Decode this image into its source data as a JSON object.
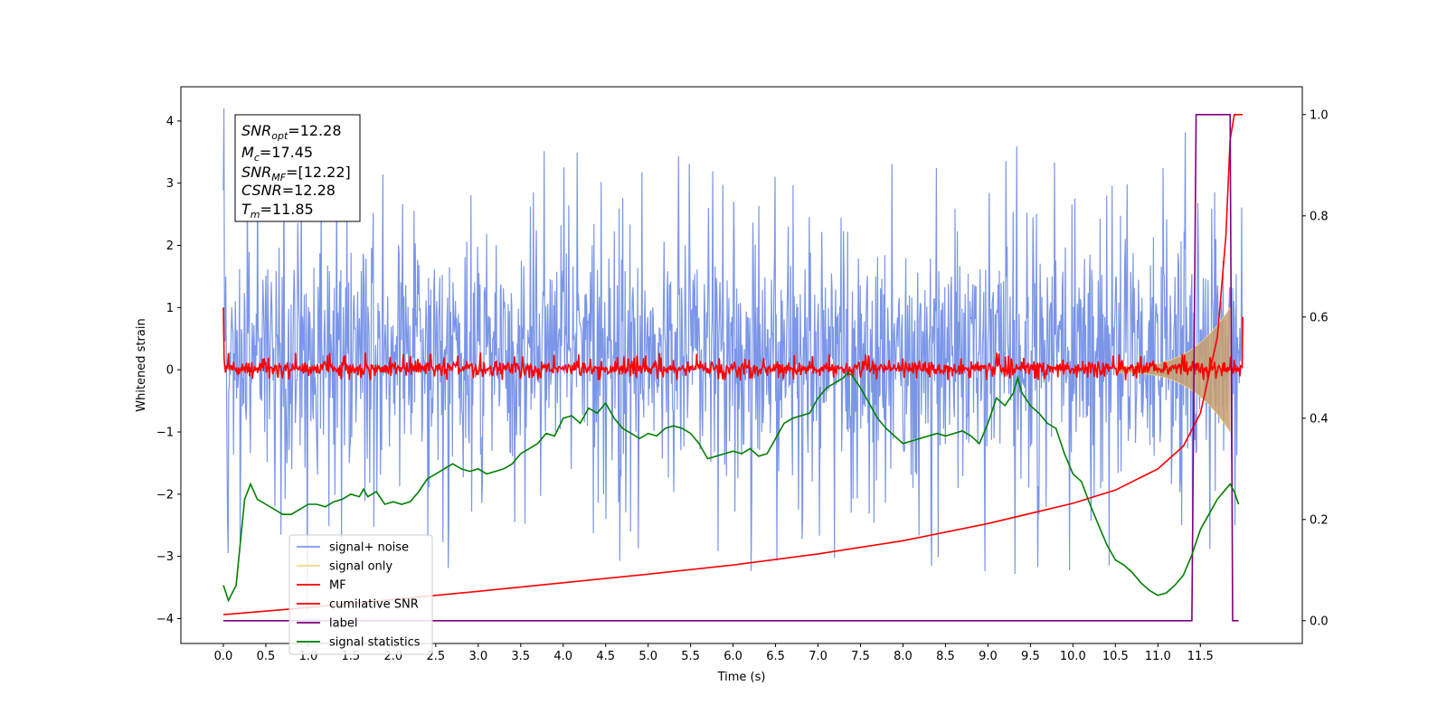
{
  "chart_data": {
    "type": "line",
    "xlabel": "Time (s)",
    "ylabel": "Whitened strain",
    "xlim": [
      -0.5,
      12.7
    ],
    "ylim": [
      -4.4,
      4.55
    ],
    "y2lim": [
      -0.045,
      1.055
    ],
    "x_ticks": [
      "0.0",
      "0.5",
      "1.0",
      "1.5",
      "2.0",
      "2.5",
      "3.0",
      "3.5",
      "4.0",
      "4.5",
      "5.0",
      "5.5",
      "6.0",
      "6.5",
      "7.0",
      "7.5",
      "8.0",
      "8.5",
      "9.0",
      "9.5",
      "10.0",
      "10.5",
      "11.0",
      "11.5"
    ],
    "y_ticks": [
      "4",
      "3",
      "2",
      "1",
      "0",
      "−1",
      "−2",
      "−3",
      "−4"
    ],
    "y2_ticks": [
      "1.0",
      "0.8",
      "0.6",
      "0.4",
      "0.2",
      "0.0"
    ],
    "annotation": {
      "snr_opt": {
        "base": "SNR",
        "sub": "opt",
        "value": "=12.28"
      },
      "mc": {
        "base": "M",
        "sub": "c",
        "value": "=17.45"
      },
      "snr_mf": {
        "base": "SNR",
        "sub": "MF",
        "value": "=[12.22]"
      },
      "csnr": {
        "base": "CSNR",
        "value": "=12.28"
      },
      "tm": {
        "base": "T",
        "sub": "m",
        "value": "=11.85"
      }
    },
    "legend": [
      {
        "label": "signal+ noise",
        "color": "#7b96e8"
      },
      {
        "label": "signal only",
        "color": "#f5d48a"
      },
      {
        "label": "MF",
        "color": "#ff0000"
      },
      {
        "label": "cumilative SNR",
        "color": "#ff0000"
      },
      {
        "label": "label",
        "color": "#800080"
      },
      {
        "label": "signal statistics",
        "color": "#008000"
      }
    ],
    "legend_position": "lower-left",
    "series": [
      {
        "name": "signal+ noise",
        "axis": "left",
        "style": "noise band",
        "x_range": [
          0.0,
          12.0
        ],
        "typical_envelope": [
          -1.7,
          2.2
        ],
        "peaks": [
          4.2,
          -3.9
        ]
      },
      {
        "name": "signal only",
        "axis": "left",
        "style": "chirp envelope",
        "x_range": [
          10.5,
          11.85
        ],
        "amplitude_start": 0.05,
        "amplitude_end": 1.0
      },
      {
        "name": "MF",
        "axis": "left",
        "style": "noise band",
        "x_range": [
          0.0,
          12.0
        ],
        "typical_envelope": [
          -0.12,
          0.18
        ],
        "edges": [
          1.0,
          0.85
        ]
      },
      {
        "name": "cumilative SNR",
        "axis": "right",
        "x": [
          0.0,
          1.0,
          2.0,
          3.0,
          4.0,
          5.0,
          6.0,
          7.0,
          8.0,
          9.0,
          10.0,
          10.5,
          11.0,
          11.3,
          11.5,
          11.7,
          11.8,
          11.85,
          11.9,
          12.0
        ],
        "y": [
          0.012,
          0.026,
          0.042,
          0.058,
          0.075,
          0.092,
          0.11,
          0.132,
          0.158,
          0.192,
          0.232,
          0.258,
          0.3,
          0.345,
          0.41,
          0.56,
          0.76,
          0.95,
          1.0,
          1.0
        ]
      },
      {
        "name": "label",
        "axis": "right",
        "x": [
          0.0,
          11.4,
          11.45,
          11.85,
          11.88,
          11.95
        ],
        "y": [
          0.0,
          0.0,
          1.0,
          1.0,
          0.0,
          0.0
        ]
      },
      {
        "name": "signal statistics",
        "axis": "right",
        "x": [
          0.0,
          0.06,
          0.15,
          0.25,
          0.32,
          0.4,
          0.5,
          0.6,
          0.7,
          0.8,
          0.9,
          1.0,
          1.1,
          1.2,
          1.3,
          1.4,
          1.5,
          1.6,
          1.65,
          1.7,
          1.8,
          1.9,
          2.0,
          2.1,
          2.2,
          2.3,
          2.4,
          2.5,
          2.6,
          2.7,
          2.8,
          2.9,
          3.0,
          3.1,
          3.2,
          3.3,
          3.4,
          3.5,
          3.6,
          3.7,
          3.8,
          3.9,
          4.0,
          4.1,
          4.2,
          4.3,
          4.4,
          4.5,
          4.6,
          4.7,
          4.8,
          4.9,
          5.0,
          5.1,
          5.2,
          5.3,
          5.4,
          5.5,
          5.6,
          5.7,
          5.8,
          5.9,
          6.0,
          6.1,
          6.2,
          6.3,
          6.4,
          6.5,
          6.6,
          6.7,
          6.8,
          6.9,
          7.0,
          7.1,
          7.2,
          7.3,
          7.35,
          7.4,
          7.5,
          7.6,
          7.7,
          7.8,
          7.9,
          8.0,
          8.1,
          8.2,
          8.3,
          8.4,
          8.5,
          8.6,
          8.7,
          8.8,
          8.9,
          9.0,
          9.1,
          9.2,
          9.3,
          9.35,
          9.4,
          9.5,
          9.6,
          9.7,
          9.8,
          9.9,
          10.0,
          10.1,
          10.2,
          10.3,
          10.4,
          10.5,
          10.6,
          10.7,
          10.8,
          10.9,
          11.0,
          11.1,
          11.2,
          11.3,
          11.4,
          11.5,
          11.6,
          11.7,
          11.8,
          11.85,
          11.9,
          11.95
        ],
        "y": [
          0.07,
          0.04,
          0.07,
          0.24,
          0.27,
          0.24,
          0.23,
          0.22,
          0.21,
          0.21,
          0.22,
          0.23,
          0.23,
          0.225,
          0.235,
          0.24,
          0.25,
          0.245,
          0.26,
          0.245,
          0.255,
          0.23,
          0.235,
          0.23,
          0.235,
          0.255,
          0.28,
          0.29,
          0.3,
          0.31,
          0.3,
          0.295,
          0.3,
          0.29,
          0.295,
          0.3,
          0.31,
          0.33,
          0.34,
          0.35,
          0.37,
          0.365,
          0.4,
          0.405,
          0.39,
          0.42,
          0.41,
          0.43,
          0.4,
          0.38,
          0.37,
          0.36,
          0.37,
          0.365,
          0.38,
          0.385,
          0.38,
          0.37,
          0.35,
          0.32,
          0.325,
          0.33,
          0.335,
          0.33,
          0.34,
          0.325,
          0.33,
          0.36,
          0.39,
          0.4,
          0.405,
          0.41,
          0.44,
          0.46,
          0.47,
          0.48,
          0.49,
          0.485,
          0.46,
          0.43,
          0.4,
          0.38,
          0.365,
          0.35,
          0.355,
          0.36,
          0.365,
          0.37,
          0.365,
          0.37,
          0.375,
          0.365,
          0.35,
          0.39,
          0.44,
          0.425,
          0.45,
          0.48,
          0.45,
          0.425,
          0.41,
          0.39,
          0.38,
          0.33,
          0.29,
          0.275,
          0.23,
          0.19,
          0.15,
          0.12,
          0.11,
          0.095,
          0.075,
          0.06,
          0.05,
          0.055,
          0.07,
          0.09,
          0.13,
          0.18,
          0.21,
          0.24,
          0.26,
          0.27,
          0.255,
          0.23
        ]
      }
    ]
  }
}
